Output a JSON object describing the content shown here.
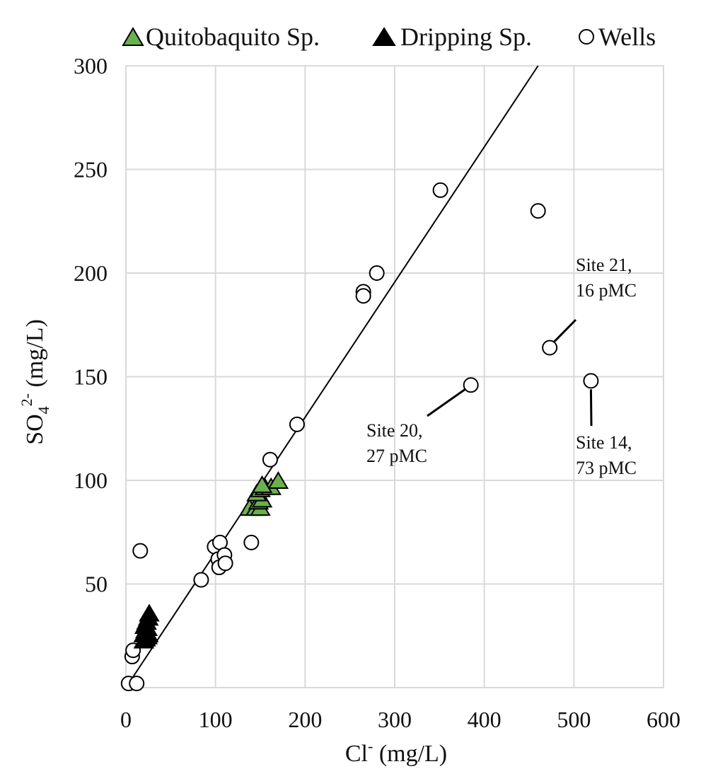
{
  "chart_data": {
    "type": "scatter",
    "xlabel": {
      "base": "Cl",
      "sup": "-",
      "unit": " (mg/L)"
    },
    "ylabel": {
      "base": "SO",
      "sub": "4",
      "sup": "2-",
      "unit": " (mg/L)"
    },
    "xlim": [
      0,
      600
    ],
    "ylim": [
      0,
      300
    ],
    "x_ticks": [
      "0",
      "100",
      "200",
      "300",
      "400",
      "500",
      "600"
    ],
    "y_ticks": [
      "50",
      "100",
      "150",
      "200",
      "250",
      "300"
    ],
    "grid": true,
    "legend_position": "top",
    "legend": [
      {
        "label": "Quitobaquito Sp.",
        "marker": "triangle",
        "color": "#6ab04c"
      },
      {
        "label": "Dripping Sp.",
        "marker": "triangle",
        "color": "#000000"
      },
      {
        "label": "Wells",
        "marker": "circle",
        "color": "#ffffff"
      }
    ],
    "series": [
      {
        "name": "Quitobaquito Sp.",
        "marker": "triangle",
        "color": "#6ab04c",
        "points": [
          [
            138,
            87
          ],
          [
            145,
            87
          ],
          [
            150,
            87
          ],
          [
            148,
            90
          ],
          [
            152,
            91
          ],
          [
            146,
            94
          ],
          [
            150,
            96
          ],
          [
            155,
            97
          ],
          [
            162,
            97
          ],
          [
            170,
            100
          ],
          [
            152,
            98
          ]
        ]
      },
      {
        "name": "Dripping Sp.",
        "marker": "triangle",
        "color": "#000000",
        "points": [
          [
            20,
            23
          ],
          [
            22,
            24
          ],
          [
            24,
            25
          ],
          [
            20,
            26
          ],
          [
            22,
            28
          ],
          [
            24,
            29
          ],
          [
            21,
            30
          ],
          [
            23,
            32
          ],
          [
            25,
            34
          ],
          [
            26,
            36
          ],
          [
            22,
            27
          ],
          [
            25,
            26
          ]
        ]
      },
      {
        "name": "Wells",
        "marker": "circle",
        "color": "#ffffff",
        "points": [
          [
            3,
            2
          ],
          [
            12,
            2
          ],
          [
            7,
            15
          ],
          [
            8,
            18
          ],
          [
            16,
            66
          ],
          [
            84,
            52
          ],
          [
            99,
            68
          ],
          [
            103,
            62
          ],
          [
            105,
            70
          ],
          [
            104,
            58
          ],
          [
            110,
            64
          ],
          [
            111,
            60
          ],
          [
            140,
            70
          ],
          [
            161,
            110
          ],
          [
            191,
            127
          ],
          [
            265,
            191
          ],
          [
            265,
            189
          ],
          [
            280,
            200
          ],
          [
            351,
            240
          ],
          [
            460,
            230
          ],
          [
            385,
            146
          ],
          [
            473,
            164
          ],
          [
            519,
            148
          ]
        ]
      }
    ],
    "trendline": [
      [
        0,
        0
      ],
      [
        460,
        300
      ]
    ],
    "annotations": [
      {
        "lines": [
          "Site 20,",
          "27 pMC"
        ],
        "point": [
          385,
          146
        ]
      },
      {
        "lines": [
          "Site 21,",
          "16 pMC"
        ],
        "point": [
          473,
          164
        ]
      },
      {
        "lines": [
          "Site 14,",
          "73 pMC"
        ],
        "point": [
          519,
          148
        ]
      }
    ]
  }
}
